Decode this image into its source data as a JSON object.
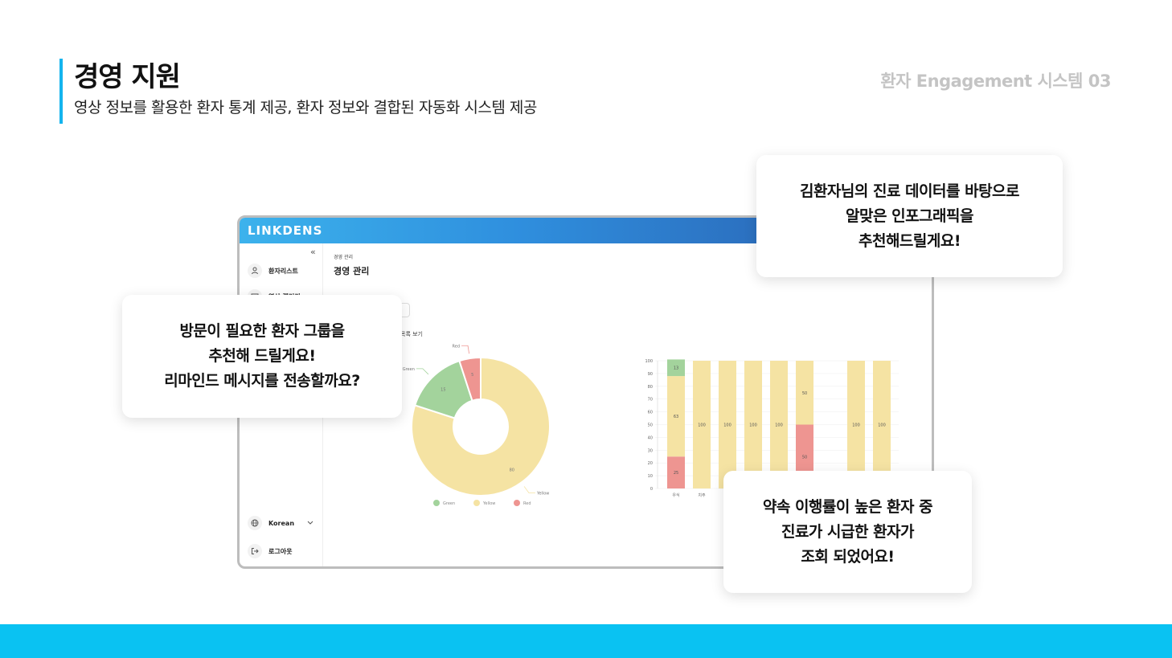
{
  "header": {
    "title": "경영 지원",
    "subtitle": "영상 정보를 활용한 환자 통계 제공, 환자 정보와 결합된 자동화 시스템 제공",
    "section_tag": "환자 Engagement 시스템 03"
  },
  "app": {
    "logo": "LINKDENS",
    "collapse_icon": "«",
    "sidebar": {
      "items": [
        {
          "icon": "person-icon",
          "label": "환자리스트"
        },
        {
          "icon": "gallery-icon",
          "label": "영상 갤러리"
        }
      ],
      "language": "Korean",
      "logout": "로그아웃"
    },
    "breadcrumb": "경영 관리",
    "page_title": "경영 관리",
    "detail_link": "목록 보기"
  },
  "callouts": {
    "top_right": [
      "김환자님의 진료 데이터를 바탕으로",
      "알맞은 인포그래픽을",
      "추천해드릴게요!"
    ],
    "left": [
      "방문이 필요한 환자 그룹을",
      "추천해 드릴게요!",
      "리마인드 메시지를 전송할까요?"
    ],
    "bottom_right": [
      "약속 이행률이 높은 환자 중",
      "진료가 시급한 환자가",
      "조회 되었어요!"
    ]
  },
  "colors": {
    "accent": "#0ac2f2",
    "green": "#a3d39c",
    "yellow": "#f5e3a3",
    "red": "#ee9591"
  },
  "chart_data": [
    {
      "type": "pie",
      "subtype": "donut",
      "labels": [
        "Yellow",
        "Green",
        "Red"
      ],
      "values": [
        80,
        15,
        5
      ],
      "legend": [
        "Green",
        "Yellow",
        "Red"
      ],
      "legend_position": "bottom"
    },
    {
      "type": "bar",
      "stacked": true,
      "categories": [
        "우식",
        "치주",
        "",
        "",
        "",
        "",
        "",
        ""
      ],
      "ylim": [
        0,
        100
      ],
      "yticks": [
        0,
        10,
        20,
        30,
        40,
        50,
        60,
        70,
        80,
        90,
        100
      ],
      "series": [
        {
          "name": "Red",
          "values": [
            25,
            0,
            0,
            0,
            0,
            50,
            0,
            0
          ]
        },
        {
          "name": "Yellow",
          "values": [
            63,
            100,
            100,
            100,
            100,
            50,
            100,
            100
          ]
        },
        {
          "name": "Green",
          "values": [
            13,
            0,
            0,
            0,
            0,
            0,
            0,
            0
          ]
        }
      ],
      "slots": [
        0,
        1,
        2,
        3,
        4,
        5,
        7,
        8
      ]
    }
  ]
}
